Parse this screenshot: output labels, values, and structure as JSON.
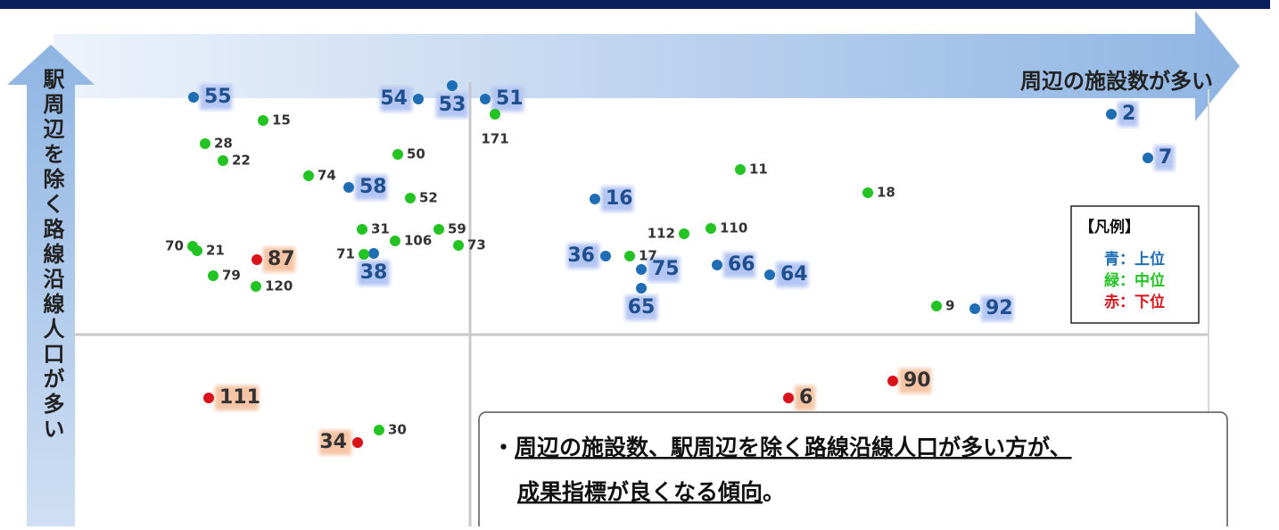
{
  "x_axis_label": "周辺の施設数が多い",
  "y_axis_label": "駅周辺を除く路線沿線人口が多い",
  "points": [
    {
      "label": "55",
      "color": "#1f6eb5"
    },
    {
      "label": "54",
      "color": "#1f6eb5"
    },
    {
      "label": "53",
      "color": "#1f6eb5"
    },
    {
      "label": "51",
      "color": "#1f6eb5"
    },
    {
      "label": "58",
      "color": "#1f6eb5"
    },
    {
      "label": "16",
      "color": "#1f6eb5"
    },
    {
      "label": "36",
      "color": "#1f6eb5"
    },
    {
      "label": "38",
      "color": "#1f6eb5"
    },
    {
      "label": "75",
      "color": "#1f6eb5"
    },
    {
      "label": "65",
      "color": "#1f6eb5"
    },
    {
      "label": "66",
      "color": "#1f6eb5"
    },
    {
      "label": "64",
      "color": "#1f6eb5"
    },
    {
      "label": "92",
      "color": "#1f6eb5"
    },
    {
      "label": "2",
      "color": "#1f6eb5"
    },
    {
      "label": "7",
      "color": "#1f6eb5"
    },
    {
      "label": "15",
      "color": "#22c322"
    },
    {
      "label": "171",
      "color": "#22c322"
    },
    {
      "label": "28",
      "color": "#22c322"
    },
    {
      "label": "22",
      "color": "#22c322"
    },
    {
      "label": "50",
      "color": "#22c322"
    },
    {
      "label": "74",
      "color": "#22c322"
    },
    {
      "label": "52",
      "color": "#22c322"
    },
    {
      "label": "11",
      "color": "#22c322"
    },
    {
      "label": "18",
      "color": "#22c322"
    },
    {
      "label": "31",
      "color": "#22c322"
    },
    {
      "label": "59",
      "color": "#22c322"
    },
    {
      "label": "106",
      "color": "#22c322"
    },
    {
      "label": "73",
      "color": "#22c322"
    },
    {
      "label": "71",
      "color": "#22c322"
    },
    {
      "label": "70",
      "color": "#22c322"
    },
    {
      "label": "21",
      "color": "#22c322"
    },
    {
      "label": "79",
      "color": "#22c322"
    },
    {
      "label": "120",
      "color": "#22c322"
    },
    {
      "label": "112",
      "color": "#22c322"
    },
    {
      "label": "110",
      "color": "#22c322"
    },
    {
      "label": "17",
      "color": "#22c322"
    },
    {
      "label": "9",
      "color": "#22c322"
    },
    {
      "label": "30",
      "color": "#22c322"
    },
    {
      "label": "87",
      "color": "#d8141a"
    },
    {
      "label": "111",
      "color": "#d8141a"
    },
    {
      "label": "34",
      "color": "#d8141a"
    },
    {
      "label": "6",
      "color": "#d8141a"
    },
    {
      "label": "90",
      "color": "#d8141a"
    }
  ],
  "legend": {
    "title": "【凡例】",
    "items": [
      {
        "label": "青：上位",
        "color": "#1f6eb5"
      },
      {
        "label": "緑：中位",
        "color": "#22c322"
      },
      {
        "label": "赤：下位",
        "color": "#d8141a"
      }
    ]
  },
  "note": {
    "bullet": "・",
    "line1": "周辺の施設数、駅周辺を除く路線沿線人口が多い方が、",
    "line2": "成果指標が良くなる傾向",
    "period": "。"
  }
}
